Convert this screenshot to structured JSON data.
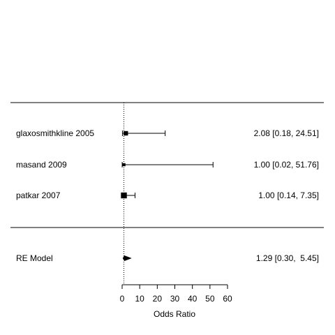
{
  "chart_data": {
    "type": "forest",
    "xlabel": "Odds Ratio",
    "xlim": [
      0,
      60
    ],
    "xticks": [
      0,
      10,
      20,
      30,
      40,
      50,
      60
    ],
    "reference_line": 1,
    "studies": [
      {
        "label": "glaxosmithkline 2005",
        "estimate": 2.08,
        "ci_low": 0.18,
        "ci_high": 24.51,
        "text": "2.08 [0.18, 24.51]",
        "weight": 0.55
      },
      {
        "label": "masand 2009",
        "estimate": 1.0,
        "ci_low": 0.02,
        "ci_high": 51.76,
        "text": "1.00 [0.02, 51.76]",
        "weight": 0.3
      },
      {
        "label": "patkar 2007",
        "estimate": 1.0,
        "ci_low": 0.14,
        "ci_high": 7.35,
        "text": "1.00 [0.14,  7.35]",
        "weight": 0.8
      }
    ],
    "summary": {
      "label": "RE Model",
      "estimate": 1.29,
      "ci_low": 0.3,
      "ci_high": 5.45,
      "text": "1.29 [0.30,  5.45]"
    }
  }
}
